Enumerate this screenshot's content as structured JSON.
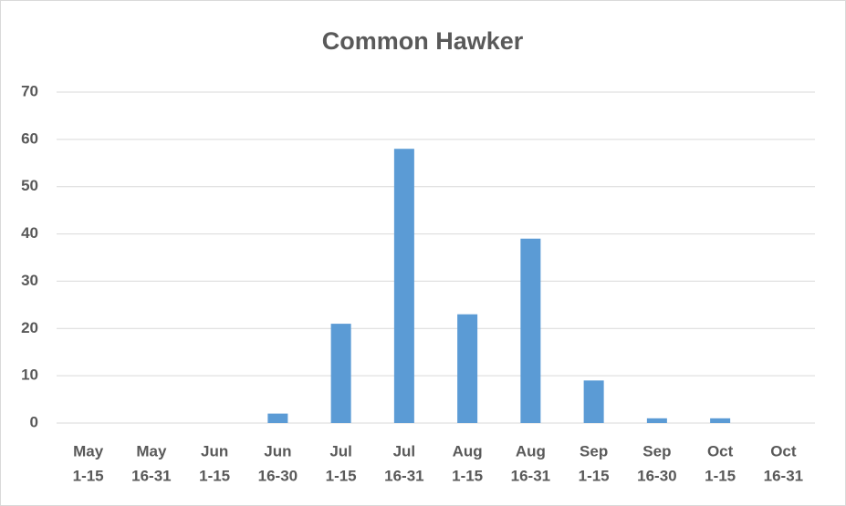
{
  "chart_data": {
    "type": "bar",
    "title": "Common Hawker",
    "categories": [
      [
        "May",
        "1-15"
      ],
      [
        "May",
        "16-31"
      ],
      [
        "Jun",
        "1-15"
      ],
      [
        "Jun",
        "16-30"
      ],
      [
        "Jul",
        "1-15"
      ],
      [
        "Jul",
        "16-31"
      ],
      [
        "Aug",
        "1-15"
      ],
      [
        "Aug",
        "16-31"
      ],
      [
        "Sep",
        "1-15"
      ],
      [
        "Sep",
        "16-30"
      ],
      [
        "Oct",
        "1-15"
      ],
      [
        "Oct",
        "16-31"
      ]
    ],
    "values": [
      0,
      0,
      0,
      2,
      21,
      58,
      23,
      39,
      9,
      1,
      1,
      0
    ],
    "color": "#5b9bd5",
    "ylim": [
      0,
      70
    ],
    "yticks": [
      0,
      10,
      20,
      30,
      40,
      50,
      60,
      70
    ],
    "grid": true
  }
}
